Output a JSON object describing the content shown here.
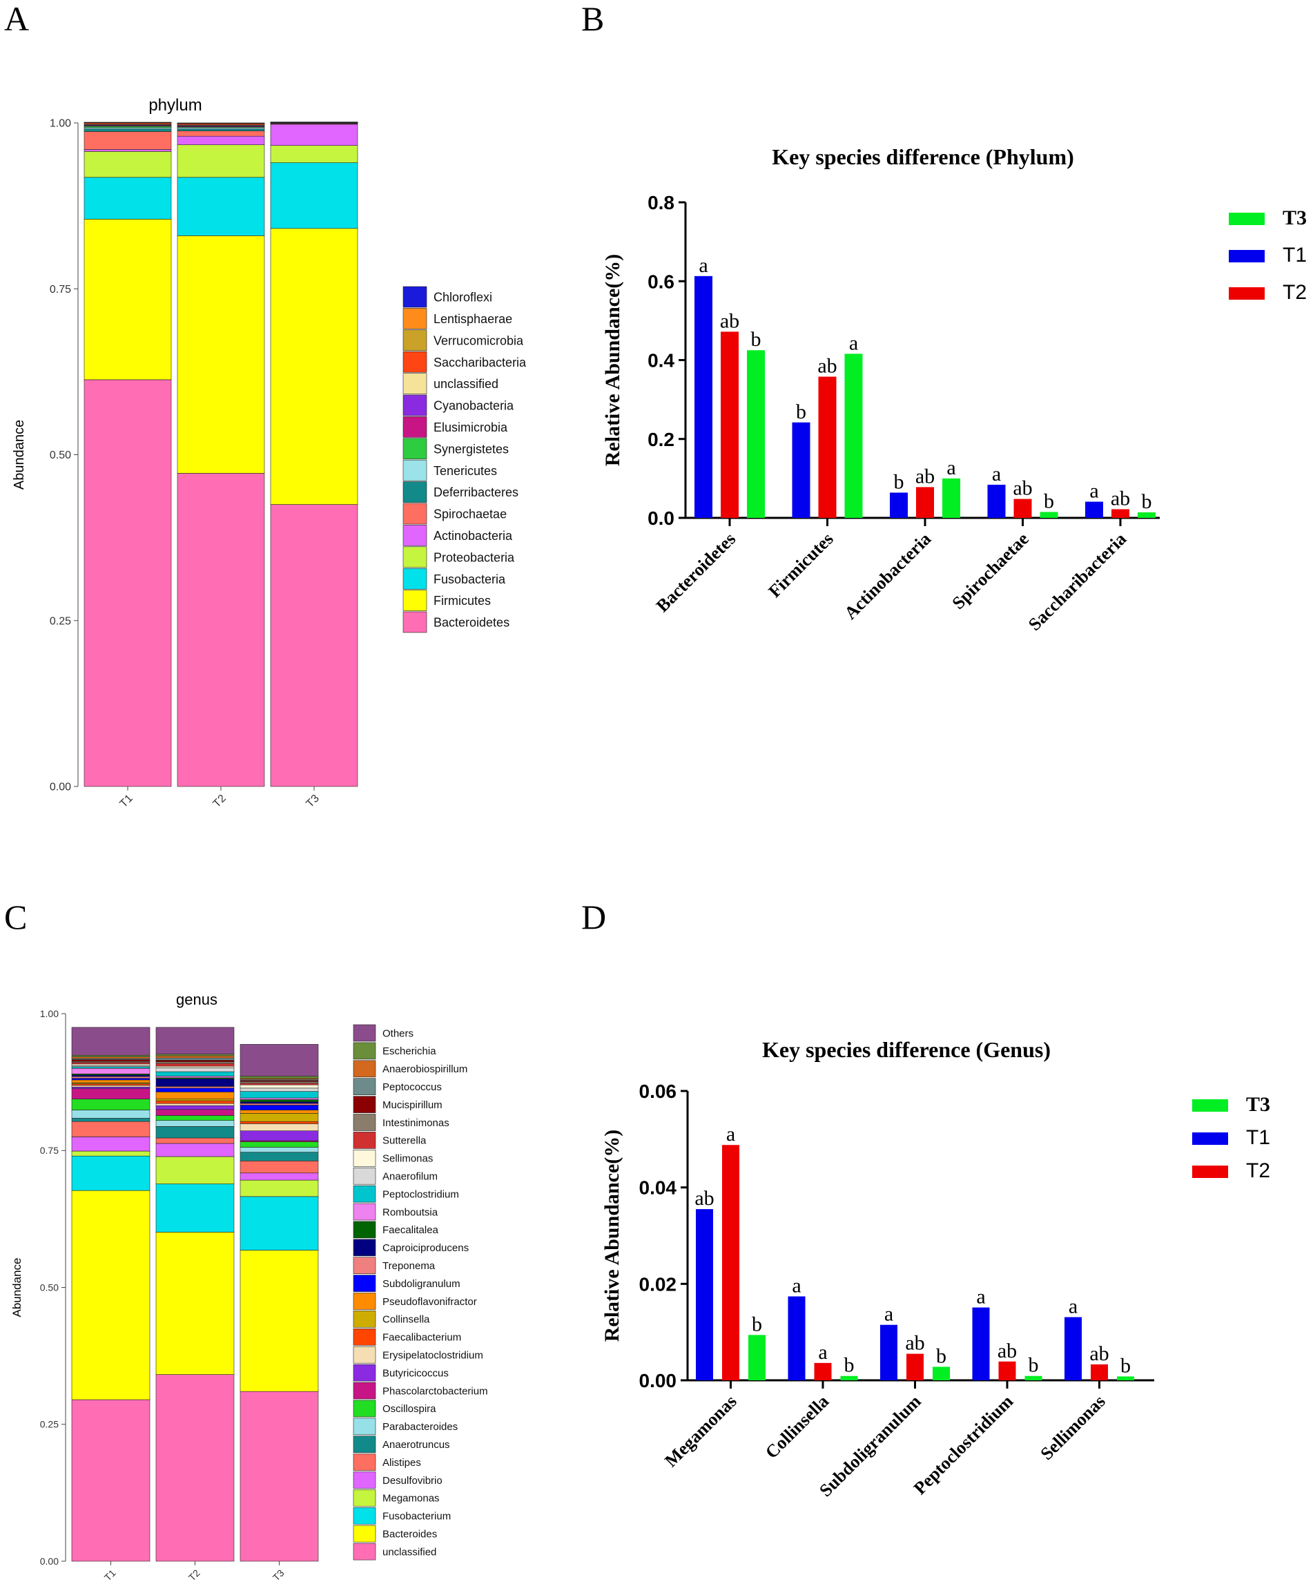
{
  "panel_labels": [
    "A",
    "B",
    "C",
    "D"
  ],
  "chart_data": [
    {
      "id": "A",
      "type": "stacked-bar",
      "title": "phylum",
      "xlabel": "",
      "ylabel": "Abundance",
      "ylim": [
        0,
        1
      ],
      "yticks": [
        "0.00",
        "0.25",
        "0.50",
        "0.75",
        "1.00"
      ],
      "categories": [
        "T1",
        "T2",
        "T3"
      ],
      "legend_order": [
        "Chloroflexi",
        "Lentisphaerae",
        "Verrucomicrobia",
        "Saccharibacteria",
        "unclassified",
        "Cyanobacteria",
        "Elusimicrobia",
        "Synergistetes",
        "Tenericutes",
        "Deferribacteres",
        "Spirochaetae",
        "Actinobacteria",
        "Proteobacteria",
        "Fusobacteria",
        "Firmicutes",
        "Bacteroidetes"
      ],
      "colors": {
        "Chloroflexi": "#1a1adb",
        "Lentisphaerae": "#ff8c1a",
        "Verrucomicrobia": "#c9a227",
        "Saccharibacteria": "#ff4513",
        "unclassified": "#f5e39a",
        "Cyanobacteria": "#8a2be2",
        "Elusimicrobia": "#c71585",
        "Synergistetes": "#2ecc40",
        "Tenericutes": "#9be3e8",
        "Deferribacteres": "#138a8a",
        "Spirochaetae": "#ff6f61",
        "Actinobacteria": "#e066ff",
        "Proteobacteria": "#c5f53e",
        "Fusobacteria": "#00e1ea",
        "Firmicutes": "#ffff00",
        "Bacteroidetes": "#ff6eb4"
      },
      "stack_order": [
        "Bacteroidetes",
        "Firmicutes",
        "Fusobacteria",
        "Proteobacteria",
        "Actinobacteria",
        "Spirochaetae",
        "Deferribacteres",
        "Tenericutes",
        "Synergistetes",
        "Elusimicrobia",
        "Cyanobacteria",
        "unclassified",
        "Saccharibacteria",
        "Verrucomicrobia",
        "Lentisphaerae",
        "Chloroflexi"
      ],
      "series": [
        {
          "name": "Bacteroidetes",
          "values": [
            0.613,
            0.472,
            0.425
          ]
        },
        {
          "name": "Firmicutes",
          "values": [
            0.242,
            0.358,
            0.416
          ]
        },
        {
          "name": "Fusobacteria",
          "values": [
            0.063,
            0.088,
            0.099
          ]
        },
        {
          "name": "Proteobacteria",
          "values": [
            0.039,
            0.049,
            0.026
          ]
        },
        {
          "name": "Actinobacteria",
          "values": [
            0.003,
            0.013,
            0.032
          ]
        },
        {
          "name": "Spirochaetae",
          "values": [
            0.027,
            0.008,
            0.001
          ]
        },
        {
          "name": "Deferribacteres",
          "values": [
            0.004,
            0.003,
            0.0005
          ]
        },
        {
          "name": "Tenericutes",
          "values": [
            0.002,
            0.002,
            0.0005
          ]
        },
        {
          "name": "Synergistetes",
          "values": [
            0.002,
            0.001,
            0.0003
          ]
        },
        {
          "name": "Elusimicrobia",
          "values": [
            0.001,
            0.001,
            0.0002
          ]
        },
        {
          "name": "Cyanobacteria",
          "values": [
            0.001,
            0.001,
            0.0002
          ]
        },
        {
          "name": "unclassified",
          "values": [
            0.001,
            0.001,
            0.0002
          ]
        },
        {
          "name": "Saccharibacteria",
          "values": [
            0.002,
            0.002,
            0.0002
          ]
        },
        {
          "name": "Verrucomicrobia",
          "values": [
            0.0005,
            0.0005,
            0.0001
          ]
        },
        {
          "name": "Lentisphaerae",
          "values": [
            0.0003,
            0.0003,
            0.0001
          ]
        },
        {
          "name": "Chloroflexi",
          "values": [
            0.0002,
            0.0002,
            0.0001
          ]
        }
      ]
    },
    {
      "id": "B",
      "type": "bar",
      "title": "Key species difference (Phylum)",
      "xlabel": "",
      "ylabel": "Relative Abundance(%)",
      "ylim": [
        0,
        0.8
      ],
      "yticks": [
        "0.0",
        "0.2",
        "0.4",
        "0.6",
        "0.8"
      ],
      "categories": [
        "Bacteroidetes",
        "Firmicutes",
        "Actinobacteria",
        "Spirochaetae",
        "Saccharibacteria"
      ],
      "legend": [
        "T3",
        "T1",
        "T2"
      ],
      "series": [
        {
          "name": "T1",
          "color": "#0000ee",
          "values": [
            0.613,
            0.242,
            0.064,
            0.084,
            0.041
          ],
          "letters": [
            "a",
            "b",
            "b",
            "a",
            "a"
          ]
        },
        {
          "name": "T2",
          "color": "#ee0000",
          "values": [
            0.472,
            0.358,
            0.078,
            0.048,
            0.022
          ],
          "letters": [
            "ab",
            "ab",
            "ab",
            "ab",
            "ab"
          ]
        },
        {
          "name": "T3",
          "color": "#00ee22",
          "values": [
            0.425,
            0.416,
            0.1,
            0.015,
            0.014
          ],
          "letters": [
            "b",
            "a",
            "a",
            "b",
            "b"
          ]
        }
      ]
    },
    {
      "id": "C",
      "type": "stacked-bar",
      "title": "genus",
      "xlabel": "",
      "ylabel": "Abundance",
      "ylim": [
        0,
        1
      ],
      "yticks": [
        "0.00",
        "0.25",
        "0.50",
        "0.75",
        "1.00"
      ],
      "categories": [
        "T1",
        "T2",
        "T3"
      ],
      "legend_order": [
        "Others",
        "Escherichia",
        "Anaerobiospirillum",
        "Peptococcus",
        "Mucispirillum",
        "Intestinimonas",
        "Sutterella",
        "Sellimonas",
        "Anaerofilum",
        "Peptoclostridium",
        "Romboutsia",
        "Faecalitalea",
        "Caproiciproducens",
        "Treponema",
        "Subdoligranulum",
        "Pseudoflavonifractor",
        "Collinsella",
        "Faecalibacterium",
        "Erysipelatoclostridium",
        "Butyricicoccus",
        "Phascolarctobacterium",
        "Oscillospira",
        "Parabacteroides",
        "Anaerotruncus",
        "Alistipes",
        "Desulfovibrio",
        "Megamonas",
        "Fusobacterium",
        "Bacteroides",
        "unclassified"
      ],
      "colors": {
        "Others": "#8b4c8b",
        "Escherichia": "#6b8e3a",
        "Anaerobiospirillum": "#d2691e",
        "Peptococcus": "#6e8b8b",
        "Mucispirillum": "#8b0000",
        "Intestinimonas": "#8b7d6b",
        "Sutterella": "#d03030",
        "Sellimonas": "#fff8dc",
        "Anaerofilum": "#d9d9d9",
        "Peptoclostridium": "#00c5cd",
        "Romboutsia": "#ee82ee",
        "Faecalitalea": "#006400",
        "Caproiciproducens": "#000080",
        "Treponema": "#f08080",
        "Subdoligranulum": "#0000ff",
        "Pseudoflavonifractor": "#ff8c00",
        "Collinsella": "#cdad00",
        "Faecalibacterium": "#ff4500",
        "Erysipelatoclostridium": "#f5deb3",
        "Butyricicoccus": "#8a2be2",
        "Phascolarctobacterium": "#c71585",
        "Oscillospira": "#22dd22",
        "Parabacteroides": "#98e0e8",
        "Anaerotruncus": "#138a8a",
        "Alistipes": "#ff6f61",
        "Desulfovibrio": "#e066ff",
        "Megamonas": "#c5f53e",
        "Fusobacterium": "#00e1ea",
        "Bacteroides": "#ffff00",
        "unclassified": "#ff6eb4"
      },
      "stack_order": [
        "unclassified",
        "Bacteroides",
        "Fusobacterium",
        "Megamonas",
        "Desulfovibrio",
        "Alistipes",
        "Anaerotruncus",
        "Parabacteroides",
        "Oscillospira",
        "Phascolarctobacterium",
        "Butyricicoccus",
        "Erysipelatoclostridium",
        "Faecalibacterium",
        "Collinsella",
        "Pseudoflavonifractor",
        "Subdoligranulum",
        "Treponema",
        "Caproiciproducens",
        "Faecalitalea",
        "Romboutsia",
        "Peptoclostridium",
        "Anaerofilum",
        "Sellimonas",
        "Sutterella",
        "Intestinimonas",
        "Mucispirillum",
        "Peptococcus",
        "Anaerobiospirillum",
        "Escherichia",
        "Others"
      ],
      "series": [
        {
          "name": "unclassified",
          "values": [
            0.295,
            0.341,
            0.31
          ]
        },
        {
          "name": "Bacteroides",
          "values": [
            0.382,
            0.26,
            0.258
          ]
        },
        {
          "name": "Fusobacterium",
          "values": [
            0.063,
            0.088,
            0.098
          ]
        },
        {
          "name": "Megamonas",
          "values": [
            0.009,
            0.05,
            0.03
          ]
        },
        {
          "name": "Desulfovibrio",
          "values": [
            0.026,
            0.024,
            0.013
          ]
        },
        {
          "name": "Alistipes",
          "values": [
            0.028,
            0.01,
            0.022
          ]
        },
        {
          "name": "Anaerotruncus",
          "values": [
            0.006,
            0.021,
            0.016
          ]
        },
        {
          "name": "Parabacteroides",
          "values": [
            0.015,
            0.011,
            0.009
          ]
        },
        {
          "name": "Oscillospira",
          "values": [
            0.02,
            0.009,
            0.01
          ]
        },
        {
          "name": "Phascolarctobacterium",
          "values": [
            0.019,
            0.011,
            0.002
          ]
        },
        {
          "name": "Butyricicoccus",
          "values": [
            0.003,
            0.007,
            0.018
          ]
        },
        {
          "name": "Erysipelatoclostridium",
          "values": [
            0.003,
            0.004,
            0.013
          ]
        },
        {
          "name": "Faecalibacterium",
          "values": [
            0.003,
            0.005,
            0.004
          ]
        },
        {
          "name": "Collinsella",
          "values": [
            0.002,
            0.003,
            0.015
          ]
        },
        {
          "name": "Pseudoflavonifractor",
          "values": [
            0.005,
            0.013,
            0.006
          ]
        },
        {
          "name": "Subdoligranulum",
          "values": [
            0.003,
            0.007,
            0.009
          ]
        },
        {
          "name": "Treponema",
          "values": [
            0.003,
            0.003,
            0.003
          ]
        },
        {
          "name": "Caproiciproducens",
          "values": [
            0.003,
            0.014,
            0.003
          ]
        },
        {
          "name": "Faecalitalea",
          "values": [
            0.002,
            0.002,
            0.004
          ]
        },
        {
          "name": "Romboutsia",
          "values": [
            0.01,
            0.003,
            0.003
          ]
        },
        {
          "name": "Peptoclostridium",
          "values": [
            0.003,
            0.008,
            0.012
          ]
        },
        {
          "name": "Anaerofilum",
          "values": [
            0.002,
            0.007,
            0.006
          ]
        },
        {
          "name": "Sellimonas",
          "values": [
            0.003,
            0.003,
            0.006
          ]
        },
        {
          "name": "Sutterella",
          "values": [
            0.003,
            0.005,
            0.003
          ]
        },
        {
          "name": "Intestinimonas",
          "values": [
            0.002,
            0.003,
            0.003
          ]
        },
        {
          "name": "Mucispirillum",
          "values": [
            0.003,
            0.003,
            0.002
          ]
        },
        {
          "name": "Peptococcus",
          "values": [
            0.002,
            0.004,
            0.002
          ]
        },
        {
          "name": "Anaerobiospirillum",
          "values": [
            0.003,
            0.004,
            0.002
          ]
        },
        {
          "name": "Escherichia",
          "values": [
            0.003,
            0.003,
            0.004
          ]
        },
        {
          "name": "Others",
          "values": [
            0.051,
            0.049,
            0.058
          ]
        }
      ]
    },
    {
      "id": "D",
      "type": "bar",
      "title": "Key species difference (Genus)",
      "xlabel": "",
      "ylabel": "Relative Abundance(%)",
      "ylim": [
        0,
        0.06
      ],
      "yticks": [
        "0.00",
        "0.02",
        "0.04",
        "0.06"
      ],
      "categories": [
        "Megamonas",
        "Collinsella",
        "Subdoligranulum",
        "Peptoclostridium",
        "Sellimonas"
      ],
      "legend": [
        "T3",
        "T1",
        "T2"
      ],
      "series": [
        {
          "name": "T1",
          "color": "#0000ee",
          "values": [
            0.0355,
            0.0174,
            0.0115,
            0.0151,
            0.0131
          ],
          "letters": [
            "ab",
            "a",
            "a",
            "a",
            "a"
          ]
        },
        {
          "name": "T2",
          "color": "#ee0000",
          "values": [
            0.0488,
            0.0036,
            0.0055,
            0.0039,
            0.0033
          ],
          "letters": [
            "a",
            "a",
            "ab",
            "ab",
            "ab"
          ]
        },
        {
          "name": "T3",
          "color": "#00ee22",
          "values": [
            0.0094,
            0.0009,
            0.0028,
            0.0009,
            0.0008
          ],
          "letters": [
            "b",
            "b",
            "b",
            "b",
            "b"
          ]
        }
      ]
    }
  ]
}
